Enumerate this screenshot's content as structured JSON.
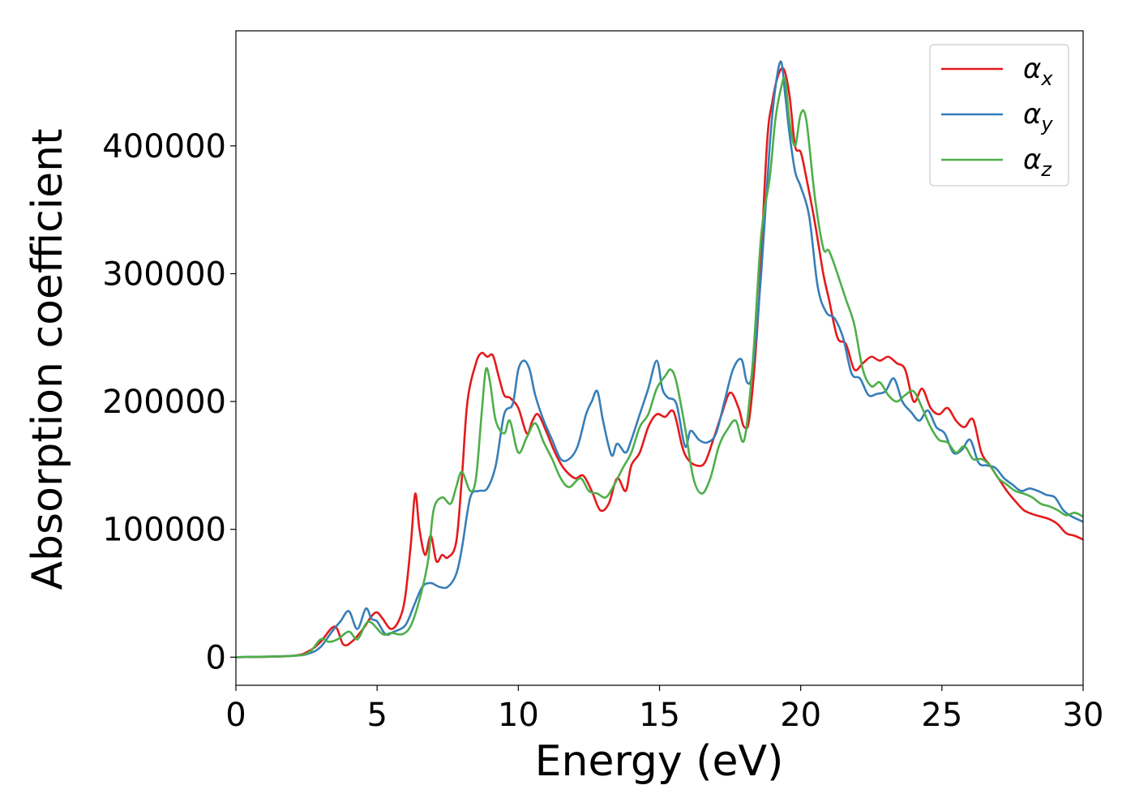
{
  "chart_data": {
    "type": "line",
    "title": "",
    "xlabel": "Energy (eV)",
    "ylabel": "Absorption coefficient",
    "xlim": [
      0,
      30
    ],
    "ylim": [
      -22000,
      490000
    ],
    "xticks": [
      0,
      5,
      10,
      15,
      20,
      25,
      30
    ],
    "yticks": [
      0,
      100000,
      200000,
      300000,
      400000
    ],
    "grid": false,
    "legend_position": "top-right",
    "series": [
      {
        "name": "αx",
        "symbol": "α",
        "subscript": "x",
        "color": "#e41a1c",
        "x": [
          0,
          2,
          2.6,
          3,
          3.5,
          3.8,
          4.1,
          4.5,
          4.8,
          5,
          5.2,
          5.5,
          5.8,
          6,
          6.2,
          6.35,
          6.5,
          6.7,
          6.9,
          7.1,
          7.3,
          7.5,
          7.8,
          8,
          8.2,
          8.5,
          8.7,
          8.9,
          9.1,
          9.3,
          9.5,
          9.7,
          10,
          10.3,
          10.5,
          10.7,
          11,
          11.3,
          11.6,
          12,
          12.3,
          12.6,
          12.9,
          13.2,
          13.5,
          13.8,
          14,
          14.3,
          14.6,
          14.9,
          15.2,
          15.5,
          15.8,
          16,
          16.3,
          16.6,
          16.9,
          17.2,
          17.5,
          17.8,
          18,
          18.2,
          18.5,
          18.8,
          19,
          19.2,
          19.4,
          19.6,
          19.8,
          20,
          20.2,
          20.5,
          20.8,
          21,
          21.3,
          21.6,
          21.9,
          22.2,
          22.5,
          22.8,
          23.1,
          23.4,
          23.7,
          24,
          24.3,
          24.6,
          24.9,
          25.2,
          25.5,
          25.8,
          26.1,
          26.4,
          26.7,
          27,
          27.3,
          27.6,
          27.9,
          28.2,
          28.5,
          28.8,
          29.1,
          29.4,
          29.7,
          30
        ],
        "y": [
          0,
          1000,
          5000,
          12000,
          24000,
          10000,
          12000,
          22000,
          32000,
          35000,
          30000,
          22000,
          30000,
          48000,
          90000,
          128000,
          100000,
          80000,
          95000,
          75000,
          80000,
          78000,
          90000,
          140000,
          200000,
          230000,
          238000,
          235000,
          236000,
          220000,
          205000,
          203000,
          195000,
          175000,
          185000,
          190000,
          176000,
          160000,
          148000,
          140000,
          142000,
          130000,
          115000,
          120000,
          140000,
          130000,
          150000,
          160000,
          180000,
          190000,
          188000,
          192000,
          165000,
          155000,
          150000,
          152000,
          170000,
          190000,
          207000,
          195000,
          180000,
          190000,
          270000,
          400000,
          435000,
          455000,
          460000,
          440000,
          400000,
          395000,
          375000,
          340000,
          300000,
          280000,
          250000,
          245000,
          225000,
          230000,
          235000,
          232000,
          235000,
          230000,
          225000,
          200000,
          210000,
          195000,
          190000,
          195000,
          185000,
          180000,
          186000,
          160000,
          150000,
          140000,
          130000,
          122000,
          115000,
          112000,
          110000,
          108000,
          104000,
          97000,
          95000,
          92000
        ]
      },
      {
        "name": "αy",
        "symbol": "α",
        "subscript": "y",
        "color": "#377eb8",
        "x": [
          0,
          2,
          2.6,
          3,
          3.4,
          3.7,
          4,
          4.3,
          4.6,
          4.8,
          5,
          5.3,
          5.6,
          6,
          6.3,
          6.6,
          6.9,
          7.2,
          7.5,
          7.8,
          8,
          8.3,
          8.6,
          8.9,
          9.2,
          9.5,
          9.8,
          10,
          10.2,
          10.4,
          10.6,
          10.9,
          11.2,
          11.5,
          11.8,
          12.1,
          12.4,
          12.6,
          12.8,
          13,
          13.3,
          13.5,
          13.8,
          14,
          14.3,
          14.6,
          14.9,
          15.1,
          15.3,
          15.6,
          15.9,
          16.1,
          16.4,
          16.7,
          17,
          17.3,
          17.6,
          17.9,
          18.1,
          18.3,
          18.6,
          18.9,
          19.1,
          19.3,
          19.45,
          19.6,
          19.8,
          20,
          20.3,
          20.6,
          20.9,
          21.2,
          21.5,
          21.8,
          22.1,
          22.4,
          22.7,
          23,
          23.3,
          23.6,
          23.9,
          24.2,
          24.5,
          24.8,
          25.1,
          25.4,
          25.7,
          26,
          26.3,
          26.6,
          26.9,
          27.2,
          27.5,
          27.8,
          28.1,
          28.4,
          28.7,
          29,
          29.3,
          29.6,
          30
        ],
        "y": [
          0,
          1000,
          3000,
          8000,
          20000,
          28000,
          36000,
          22000,
          38000,
          30000,
          28000,
          18000,
          20000,
          25000,
          40000,
          55000,
          58000,
          55000,
          55000,
          65000,
          85000,
          125000,
          130000,
          132000,
          150000,
          190000,
          198000,
          225000,
          232000,
          225000,
          205000,
          185000,
          170000,
          155000,
          155000,
          165000,
          190000,
          200000,
          208000,
          185000,
          158000,
          167000,
          160000,
          170000,
          190000,
          210000,
          232000,
          210000,
          203000,
          198000,
          165000,
          177000,
          170000,
          168000,
          175000,
          200000,
          225000,
          233000,
          215000,
          225000,
          300000,
          400000,
          445000,
          466000,
          440000,
          410000,
          380000,
          368000,
          345000,
          290000,
          270000,
          265000,
          250000,
          222000,
          218000,
          205000,
          206000,
          208000,
          218000,
          200000,
          192000,
          185000,
          193000,
          180000,
          175000,
          160000,
          162000,
          170000,
          152000,
          150000,
          148000,
          140000,
          135000,
          130000,
          132000,
          130000,
          127000,
          125000,
          115000,
          110000,
          106000
        ]
      },
      {
        "name": "αz",
        "symbol": "α",
        "subscript": "z",
        "color": "#4daf4a",
        "x": [
          0,
          2,
          2.6,
          3,
          3.3,
          3.6,
          4,
          4.3,
          4.6,
          4.8,
          5.2,
          5.5,
          5.9,
          6.2,
          6.5,
          6.8,
          7,
          7.3,
          7.6,
          7.8,
          8,
          8.3,
          8.5,
          8.7,
          8.85,
          9,
          9.2,
          9.5,
          9.7,
          10,
          10.3,
          10.6,
          10.9,
          11.2,
          11.5,
          11.8,
          12.2,
          12.5,
          12.8,
          13.1,
          13.4,
          13.7,
          14,
          14.3,
          14.6,
          14.9,
          15.2,
          15.4,
          15.6,
          15.9,
          16.2,
          16.5,
          16.8,
          17.1,
          17.4,
          17.7,
          18,
          18.3,
          18.6,
          18.9,
          19.1,
          19.3,
          19.45,
          19.6,
          19.8,
          20,
          20.2,
          20.5,
          20.8,
          21,
          21.3,
          21.6,
          21.9,
          22.2,
          22.5,
          22.8,
          23.1,
          23.4,
          23.7,
          24,
          24.3,
          24.6,
          24.9,
          25.2,
          25.5,
          25.8,
          26.1,
          26.4,
          26.7,
          27,
          27.3,
          27.6,
          27.9,
          28.2,
          28.5,
          28.8,
          29.1,
          29.4,
          29.7,
          30
        ],
        "y": [
          0,
          1000,
          4000,
          14000,
          12000,
          14000,
          20000,
          14000,
          26000,
          27000,
          18000,
          19000,
          18000,
          25000,
          45000,
          75000,
          115000,
          125000,
          120000,
          133000,
          145000,
          130000,
          140000,
          190000,
          225000,
          215000,
          185000,
          175000,
          185000,
          160000,
          172000,
          183000,
          168000,
          155000,
          140000,
          133000,
          140000,
          130000,
          128000,
          125000,
          135000,
          148000,
          160000,
          180000,
          190000,
          210000,
          220000,
          225000,
          215000,
          180000,
          140000,
          128000,
          140000,
          165000,
          178000,
          185000,
          170000,
          230000,
          330000,
          375000,
          420000,
          445000,
          452000,
          420000,
          400000,
          425000,
          420000,
          360000,
          320000,
          318000,
          300000,
          280000,
          260000,
          225000,
          212000,
          215000,
          205000,
          200000,
          205000,
          208000,
          195000,
          180000,
          170000,
          168000,
          160000,
          165000,
          155000,
          155000,
          150000,
          140000,
          135000,
          130000,
          128000,
          125000,
          120000,
          118000,
          115000,
          111000,
          113000,
          110000
        ]
      }
    ]
  }
}
